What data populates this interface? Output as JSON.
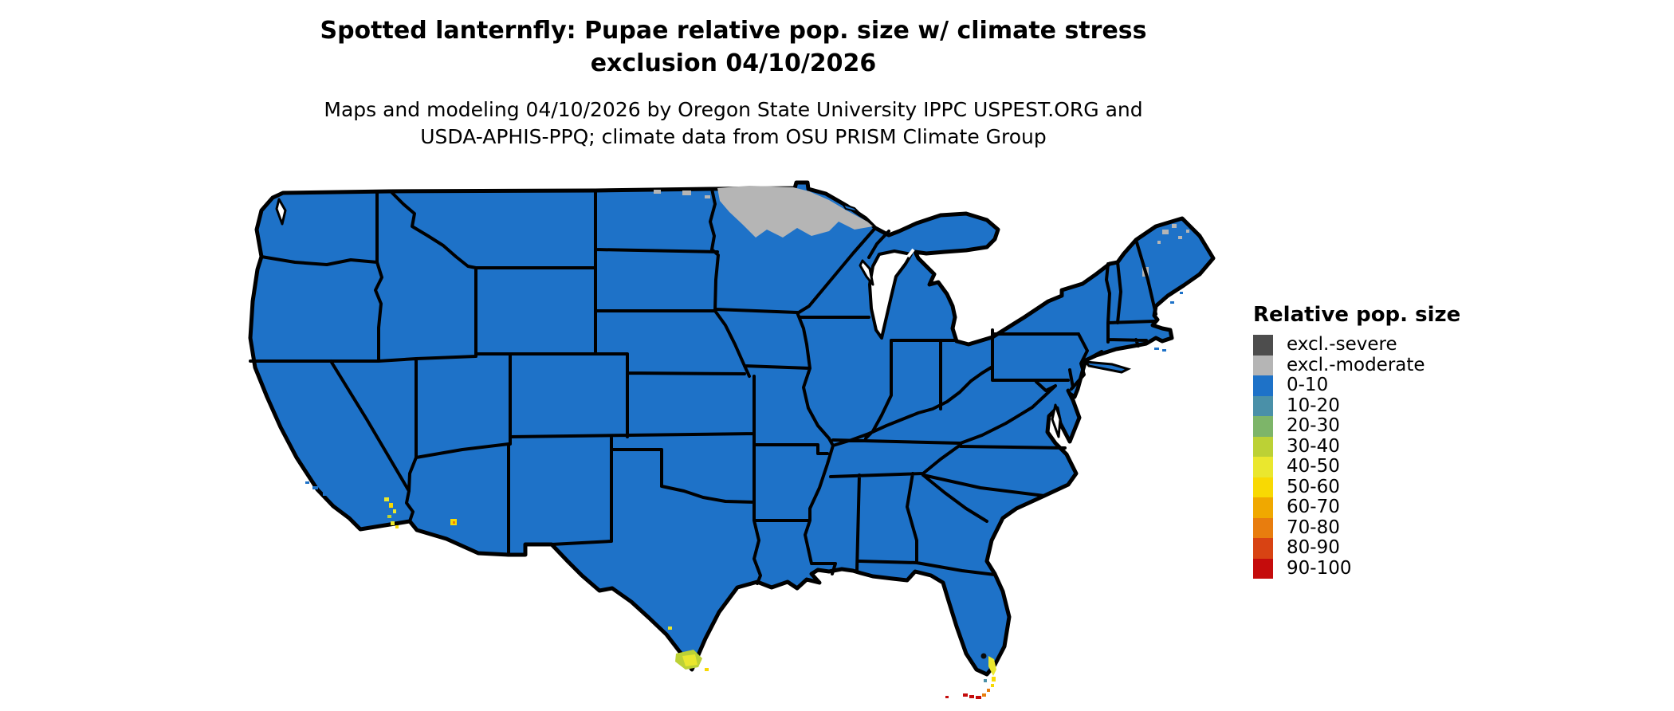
{
  "header": {
    "title_line1": "Spotted lanternfly: Pupae relative pop. size w/ climate stress",
    "title_line2": "exclusion 04/10/2026",
    "subtitle_line1": "Maps and modeling 04/10/2026 by Oregon State University IPPC USPEST.ORG and",
    "subtitle_line2": "USDA-APHIS-PPQ; climate data from OSU PRISM Climate Group"
  },
  "legend": {
    "title": "Relative pop. size",
    "items": [
      {
        "label": "excl.-severe",
        "color": "#4D4D4D"
      },
      {
        "label": "excl.-moderate",
        "color": "#B5B5B5"
      },
      {
        "label": "0-10",
        "color": "#1E72C8"
      },
      {
        "label": "10-20",
        "color": "#4A90A8"
      },
      {
        "label": "20-30",
        "color": "#7DB569"
      },
      {
        "label": "30-40",
        "color": "#BCD135"
      },
      {
        "label": "40-50",
        "color": "#EAE72E"
      },
      {
        "label": "50-60",
        "color": "#F8D903"
      },
      {
        "label": "60-70",
        "color": "#F0A800"
      },
      {
        "label": "70-80",
        "color": "#E87D0E"
      },
      {
        "label": "80-90",
        "color": "#D84313"
      },
      {
        "label": "90-100",
        "color": "#C50C0C"
      }
    ]
  },
  "palette": {
    "land": "#1E72C8",
    "border": "#000000",
    "water": "#FFFFFF",
    "excl_severe": "#4D4D4D",
    "excl_moderate": "#B5B5B5",
    "c0_10": "#1E72C8",
    "c10_20": "#4A90A8",
    "c20_30": "#7DB569",
    "c30_40": "#BCD135",
    "c40_50": "#EAE72E",
    "c50_60": "#F8D903",
    "c60_70": "#F0A800",
    "c70_80": "#E87D0E",
    "c80_90": "#D84313",
    "c90_100": "#C50C0C"
  },
  "map": {
    "regions": [
      {
        "area": "Most of contiguous United States",
        "value": "0-10"
      },
      {
        "area": "Northern Minnesota and adjacent eastern North Dakota",
        "value": "excl.-moderate"
      },
      {
        "area": "Northern Maine (scattered patches)",
        "value": "excl.-moderate"
      },
      {
        "area": "White Mountains, New Hampshire (small patch)",
        "value": "excl.-moderate"
      },
      {
        "area": "Southern California inland valleys (small spots)",
        "value": "30-60"
      },
      {
        "area": "Southwestern Arizona (small spot)",
        "value": "50-80"
      },
      {
        "area": "Southern tip of Texas (Rio Grande Valley)",
        "value": "20-60"
      },
      {
        "area": "Southeast Florida coast",
        "value": "40-60"
      },
      {
        "area": "Florida Keys",
        "value": "50-100"
      }
    ]
  }
}
